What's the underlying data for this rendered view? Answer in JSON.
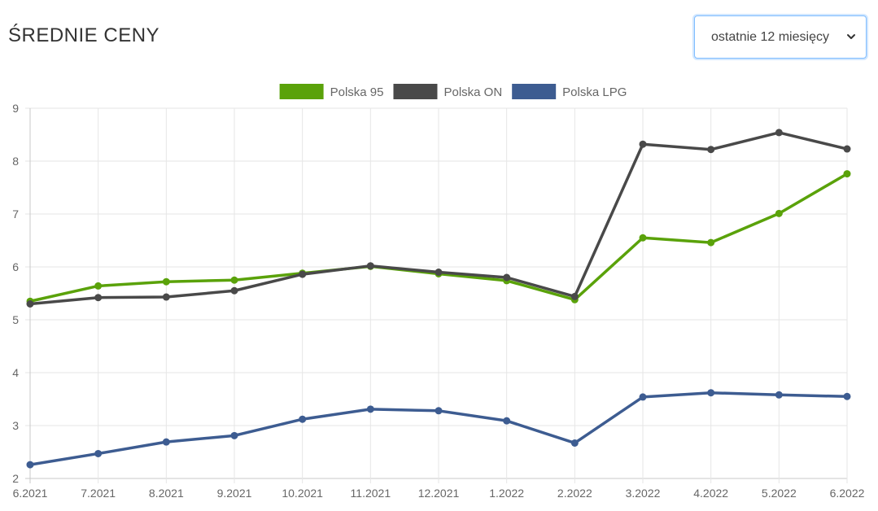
{
  "header": {
    "title": "ŚREDNIE CENY",
    "period_select": {
      "selected": "ostatnie 12 miesięcy"
    }
  },
  "chart_data": {
    "type": "line",
    "categories": [
      "6.2021",
      "7.2021",
      "8.2021",
      "9.2021",
      "10.2021",
      "11.2021",
      "12.2021",
      "1.2022",
      "2.2022",
      "3.2022",
      "4.2022",
      "5.2022",
      "6.2022"
    ],
    "ylim": [
      2,
      9
    ],
    "yticks": [
      "2",
      "3",
      "4",
      "5",
      "6",
      "7",
      "8",
      "9"
    ],
    "grid": true,
    "legend_position": "top-center",
    "series": [
      {
        "name": "Polska 95",
        "color": "#5aa20a",
        "values": [
          5.35,
          5.64,
          5.72,
          5.75,
          5.88,
          6.01,
          5.87,
          5.74,
          5.38,
          6.55,
          6.46,
          7.01,
          7.76
        ]
      },
      {
        "name": "Polska ON",
        "color": "#494949",
        "values": [
          5.3,
          5.42,
          5.43,
          5.55,
          5.86,
          6.02,
          5.9,
          5.8,
          5.44,
          8.32,
          8.22,
          8.54,
          8.23
        ]
      },
      {
        "name": "Polska LPG",
        "color": "#3d5c91",
        "values": [
          2.26,
          2.47,
          2.69,
          2.81,
          3.12,
          3.31,
          3.28,
          3.09,
          2.67,
          3.54,
          3.62,
          3.58,
          3.55
        ]
      }
    ]
  }
}
